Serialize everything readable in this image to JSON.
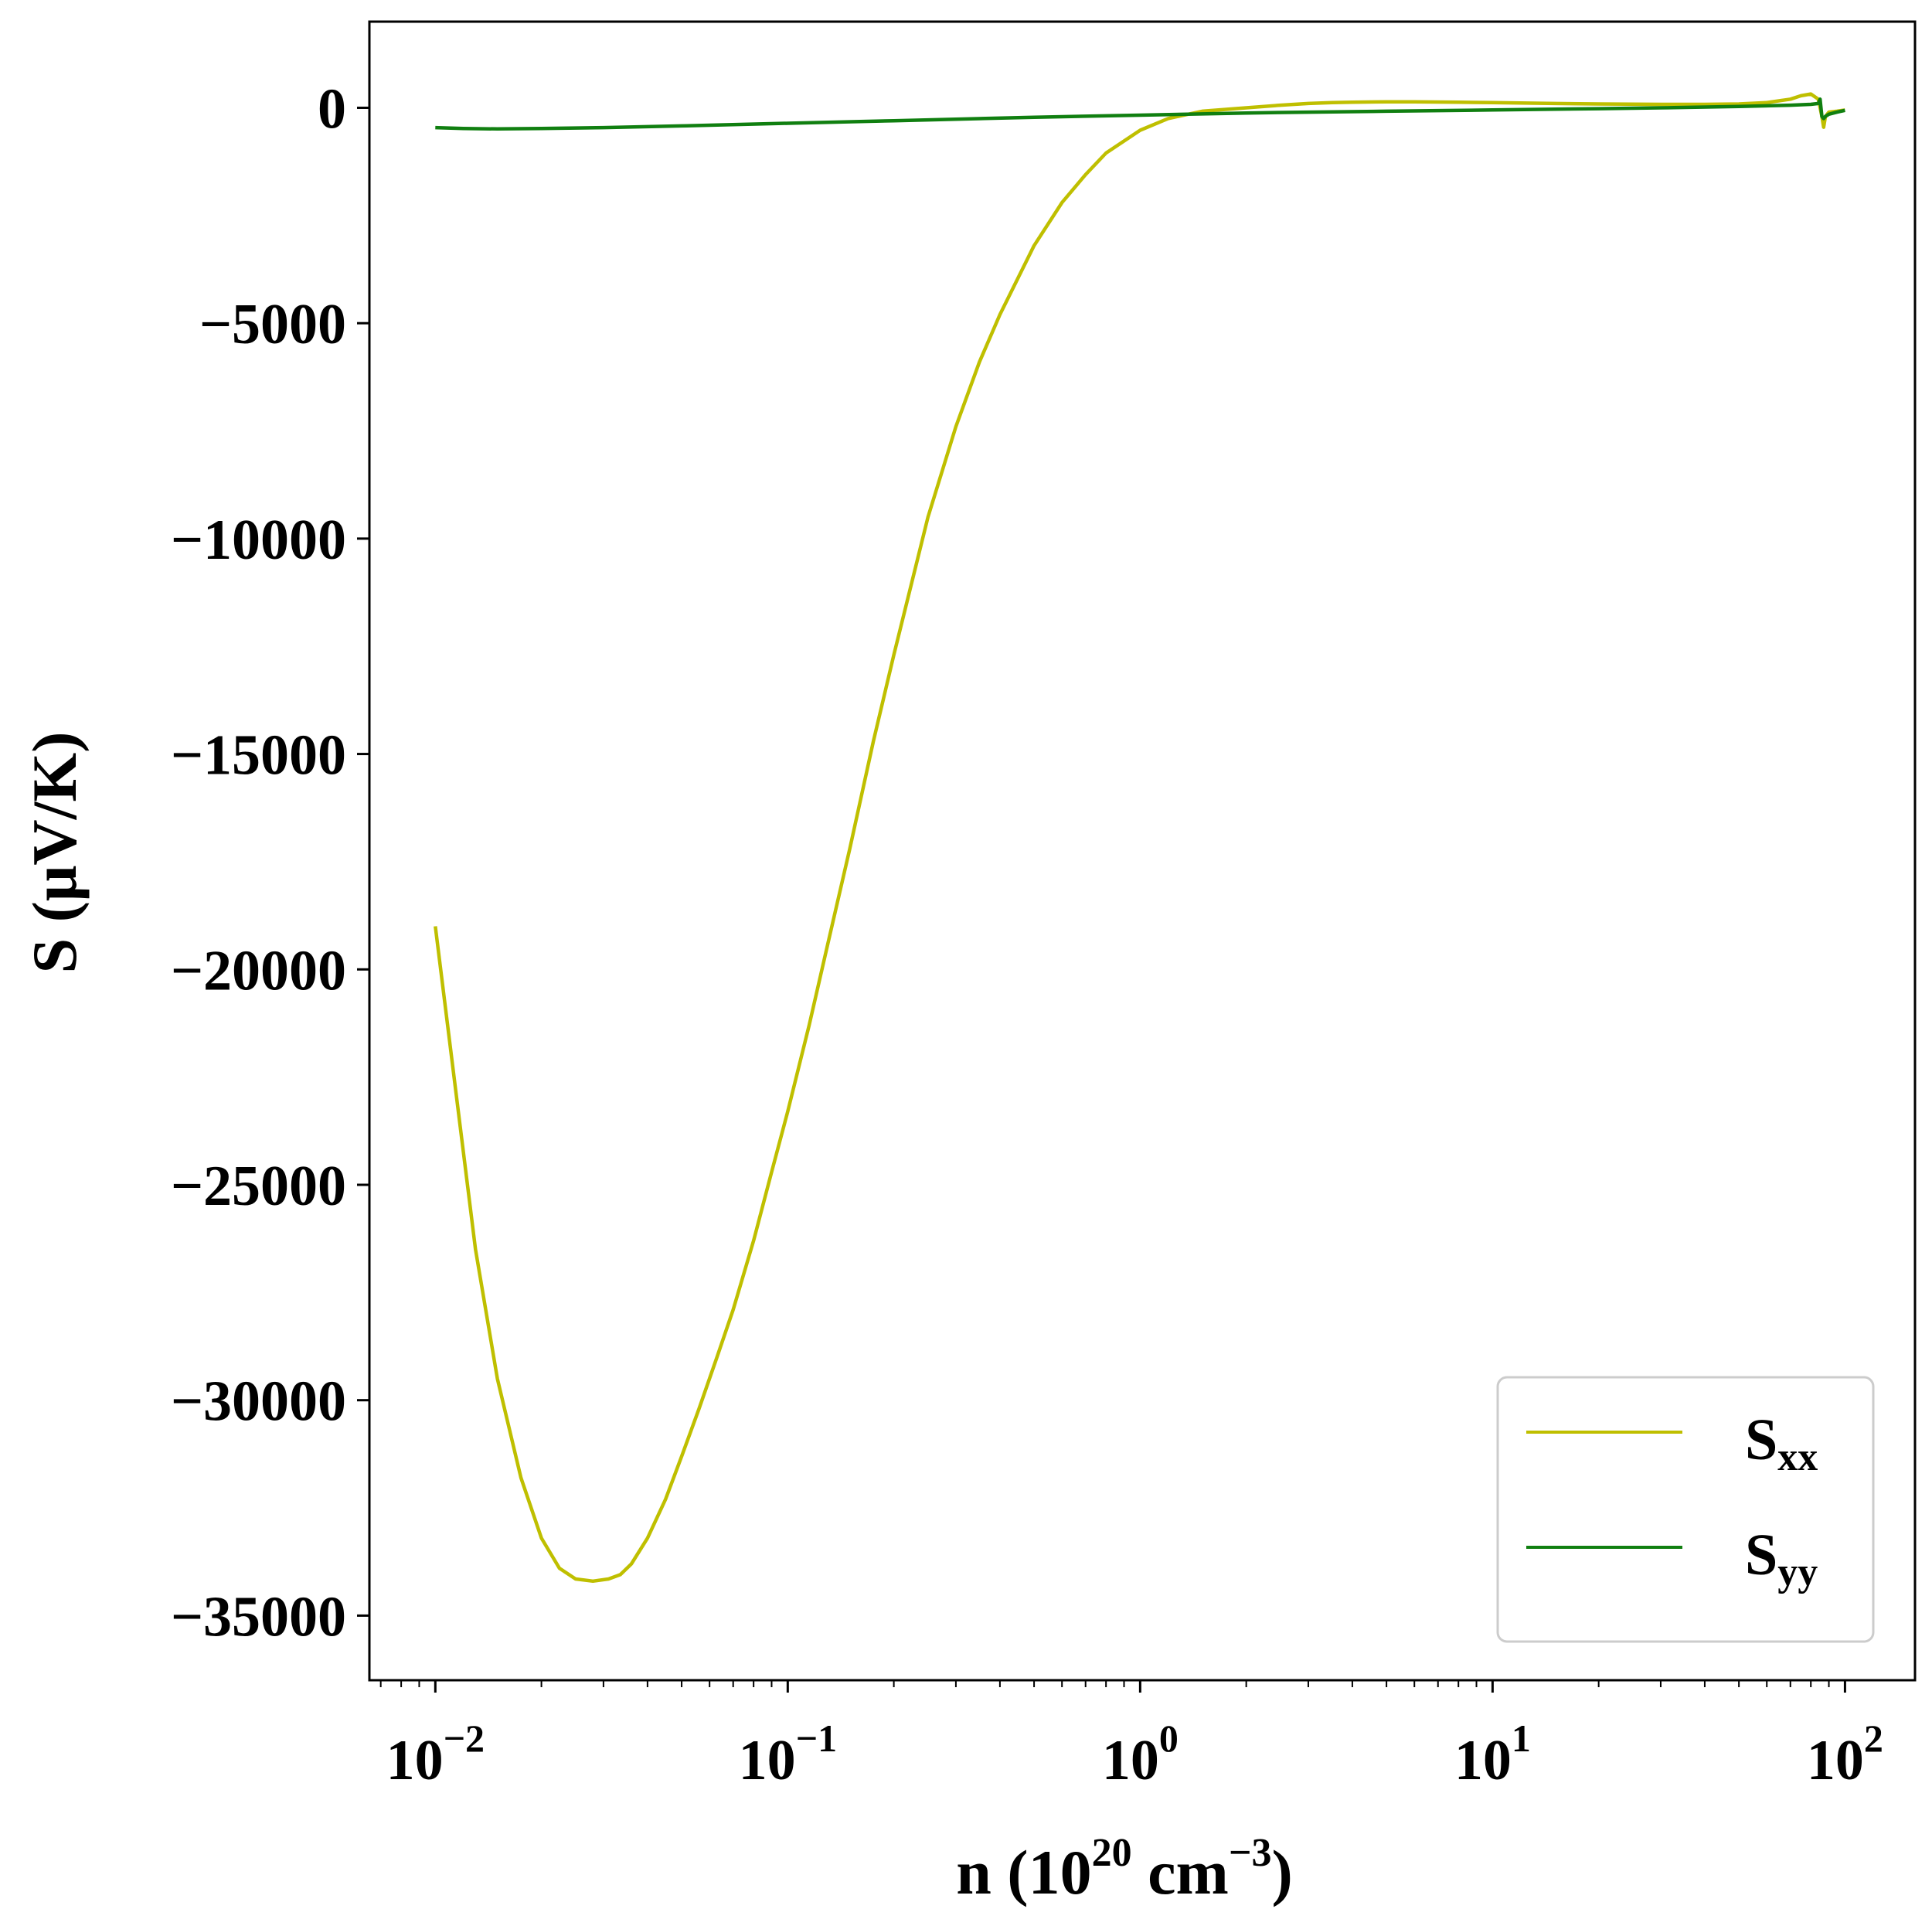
{
  "chart_data": {
    "type": "line",
    "x_scale": "log",
    "xlabel": {
      "base": "n (10",
      "exp1": "20",
      "mid": " cm",
      "exp2": "−3",
      "end": ")"
    },
    "ylabel": "S (μV/K)",
    "xlim": [
      0.0065,
      158
    ],
    "ylim": [
      -36500,
      2000
    ],
    "xticks": [
      {
        "value": 0.01,
        "base": "10",
        "exp": "−2"
      },
      {
        "value": 0.1,
        "base": "10",
        "exp": "−1"
      },
      {
        "value": 1,
        "base": "10",
        "exp": "0"
      },
      {
        "value": 10,
        "base": "10",
        "exp": "1"
      },
      {
        "value": 100,
        "base": "10",
        "exp": "2"
      }
    ],
    "yticks": [
      {
        "value": 0,
        "label": "0"
      },
      {
        "value": -5000,
        "label": "−5000"
      },
      {
        "value": -10000,
        "label": "−10000"
      },
      {
        "value": -15000,
        "label": "−15000"
      },
      {
        "value": -20000,
        "label": "−20000"
      },
      {
        "value": -25000,
        "label": "−25000"
      },
      {
        "value": -30000,
        "label": "−30000"
      },
      {
        "value": -35000,
        "label": "−35000"
      }
    ],
    "grid": false,
    "legend_position": "lower-right",
    "series": [
      {
        "name": "S",
        "subscript": "xx",
        "color": "#bfbf00",
        "x": [
          0.01,
          0.0115,
          0.013,
          0.015,
          0.0175,
          0.02,
          0.0225,
          0.025,
          0.028,
          0.031,
          0.0335,
          0.036,
          0.04,
          0.045,
          0.05,
          0.056,
          0.063,
          0.07,
          0.08,
          0.09,
          0.1,
          0.115,
          0.13,
          0.15,
          0.175,
          0.2,
          0.25,
          0.3,
          0.35,
          0.4,
          0.5,
          0.6,
          0.7,
          0.8,
          1.0,
          1.2,
          1.5,
          2.0,
          2.5,
          3.0,
          3.5,
          4.0,
          5.0,
          6.0,
          8.0,
          10,
          15,
          20,
          30,
          40,
          50,
          60,
          70,
          75,
          80,
          84,
          86,
          87,
          88,
          90,
          95,
          100
        ],
        "y": [
          -19000,
          -23000,
          -26500,
          -29500,
          -31800,
          -33200,
          -33900,
          -34150,
          -34200,
          -34150,
          -34050,
          -33800,
          -33200,
          -32300,
          -31300,
          -30200,
          -29000,
          -27900,
          -26300,
          -24700,
          -23300,
          -21300,
          -19400,
          -17200,
          -14700,
          -12700,
          -9500,
          -7400,
          -5900,
          -4800,
          -3200,
          -2200,
          -1550,
          -1050,
          -520,
          -250,
          -80,
          0,
          60,
          100,
          120,
          130,
          140,
          140,
          130,
          120,
          100,
          90,
          80,
          80,
          90,
          120,
          200,
          280,
          320,
          200,
          -200,
          -450,
          -200,
          -100,
          -80,
          -50
        ]
      },
      {
        "name": "S",
        "subscript": "yy",
        "color": "#107f10",
        "x": [
          0.01,
          0.012,
          0.015,
          0.02,
          0.03,
          0.05,
          0.1,
          0.2,
          0.5,
          1.0,
          2.0,
          3.0,
          5.0,
          10,
          20,
          30,
          50,
          70,
          80,
          84,
          85,
          86,
          87,
          88,
          90,
          95,
          100
        ],
        "y": [
          -460,
          -480,
          -490,
          -480,
          -460,
          -420,
          -360,
          -300,
          -220,
          -170,
          -120,
          -100,
          -80,
          -50,
          -20,
          0,
          30,
          60,
          80,
          100,
          200,
          -200,
          -250,
          -200,
          -150,
          -100,
          -60
        ]
      }
    ]
  }
}
